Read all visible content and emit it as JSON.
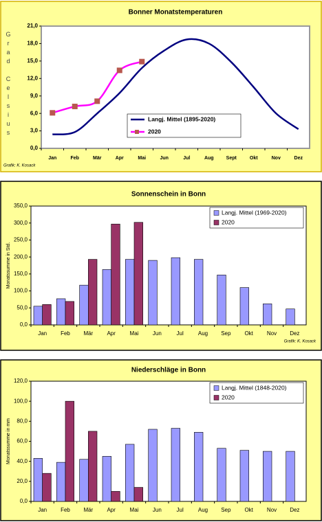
{
  "chart_data": [
    {
      "type": "line",
      "title": "Bonner Monatstemperaturen",
      "ylabel": "Grad Celsius",
      "source": "Grafik: K. Kosack",
      "categories": [
        "Jan",
        "Feb",
        "Mär",
        "Apr",
        "Mai",
        "Jun",
        "Jul",
        "Aug",
        "Sept",
        "Okt",
        "Nov",
        "Dez"
      ],
      "series": [
        {
          "name": "Langj. Mittel (1895-2020)",
          "color": "#000080",
          "values": [
            2.4,
            2.8,
            6.0,
            9.5,
            13.8,
            16.8,
            18.7,
            18.0,
            14.8,
            10.5,
            6.0,
            3.3
          ]
        },
        {
          "name": "2020",
          "color": "#ff00ff",
          "marker_color": "#b8574f",
          "marker": "square",
          "values": [
            6.1,
            7.2,
            8.1,
            13.4,
            14.9,
            null,
            null,
            null,
            null,
            null,
            null,
            null
          ]
        }
      ],
      "ylim": [
        0,
        21
      ],
      "yticks": [
        {
          "value": 0,
          "label": "0,0"
        },
        {
          "value": 3,
          "label": "3,0"
        },
        {
          "value": 6,
          "label": "6,0"
        },
        {
          "value": 9,
          "label": "9,0"
        },
        {
          "value": 12,
          "label": "12,0"
        },
        {
          "value": 15,
          "label": "15,0"
        },
        {
          "value": 18,
          "label": "18,0"
        },
        {
          "value": 21,
          "label": "21,0"
        }
      ],
      "grid": false,
      "legend": "bottom-center"
    },
    {
      "type": "bar",
      "title": "Sonnenschein in Bonn",
      "ylabel": "Monatssumme in Std.",
      "source": "Grafik: K. Kosack",
      "categories": [
        "Jan",
        "Feb",
        "Mär",
        "Apr",
        "Mai",
        "Jun",
        "Jul",
        "Aug",
        "Sep",
        "Okt",
        "Nov",
        "Dez"
      ],
      "series": [
        {
          "name": "Langj. Mittel (1969-2020)",
          "color": "#9999ff",
          "values": [
            55,
            77,
            117,
            163,
            193,
            190,
            198,
            193,
            147,
            110,
            62,
            47
          ]
        },
        {
          "name": "2020",
          "color": "#993366",
          "values": [
            60,
            69,
            193,
            297,
            302,
            null,
            null,
            null,
            null,
            null,
            null,
            null
          ]
        }
      ],
      "ylim": [
        0,
        350
      ],
      "yticks": [
        {
          "value": 0,
          "label": "0,0"
        },
        {
          "value": 50,
          "label": "50,0"
        },
        {
          "value": 100,
          "label": "100,0"
        },
        {
          "value": 150,
          "label": "150,0"
        },
        {
          "value": 200,
          "label": "200,0"
        },
        {
          "value": 250,
          "label": "250,0"
        },
        {
          "value": 300,
          "label": "300,0"
        },
        {
          "value": 350,
          "label": "350,0"
        }
      ],
      "grid": false,
      "legend": "top-right"
    },
    {
      "type": "bar",
      "title": "Niederschläge in Bonn",
      "ylabel": "Monatssumme in mm",
      "categories": [
        "Jan",
        "Feb",
        "Mär",
        "Apr",
        "Mai",
        "Jun",
        "Jul",
        "Aug",
        "Sep",
        "Okt",
        "Nov",
        "Dez"
      ],
      "series": [
        {
          "name": "Langj. Mittel (1848-2020)",
          "color": "#9999ff",
          "values": [
            43,
            39,
            42,
            45,
            57,
            72,
            73,
            69,
            53,
            51,
            50,
            50
          ]
        },
        {
          "name": "2020",
          "color": "#993366",
          "values": [
            28,
            100,
            70,
            10,
            14,
            null,
            null,
            null,
            null,
            null,
            null,
            null
          ]
        }
      ],
      "ylim": [
        0,
        120
      ],
      "yticks": [
        {
          "value": 0,
          "label": "0,0"
        },
        {
          "value": 20,
          "label": "20,0"
        },
        {
          "value": 40,
          "label": "40,0"
        },
        {
          "value": 60,
          "label": "60,0"
        },
        {
          "value": 80,
          "label": "80,0"
        },
        {
          "value": 100,
          "label": "100,0"
        },
        {
          "value": 120,
          "label": "120,0"
        }
      ],
      "grid": false,
      "legend": "top-right"
    }
  ]
}
